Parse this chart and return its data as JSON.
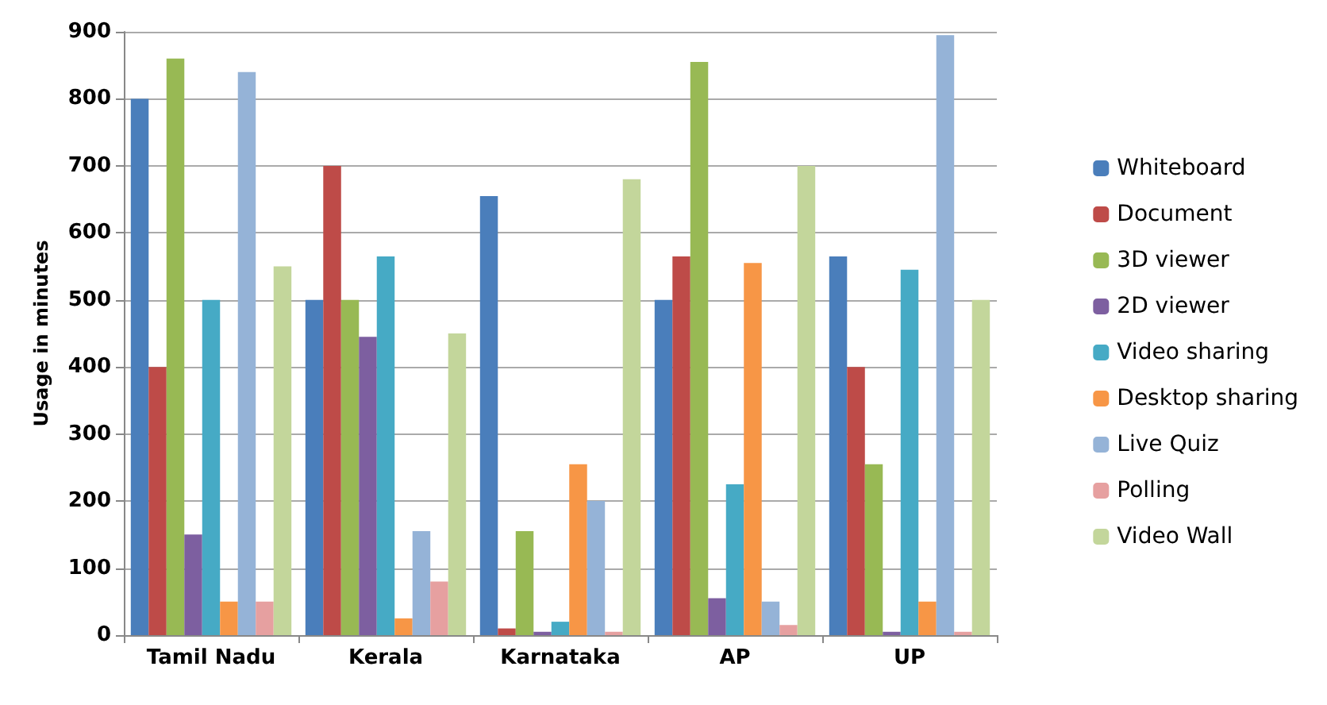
{
  "chart_data": {
    "type": "bar",
    "ylabel": "Usage in minutes",
    "categories": [
      "Tamil Nadu",
      "Kerala",
      "Karnataka",
      "AP",
      "UP"
    ],
    "series": [
      {
        "name": "Whiteboard",
        "color": "#4a7ebb",
        "values": [
          800,
          500,
          655,
          500,
          565
        ]
      },
      {
        "name": "Document",
        "color": "#be4b48",
        "values": [
          400,
          700,
          10,
          565,
          400
        ]
      },
      {
        "name": "3D viewer",
        "color": "#98b954",
        "values": [
          860,
          500,
          155,
          855,
          255
        ]
      },
      {
        "name": "2D viewer",
        "color": "#7d5fa0",
        "values": [
          150,
          445,
          5,
          55,
          5
        ]
      },
      {
        "name": "Video sharing",
        "color": "#46aac5",
        "values": [
          500,
          565,
          20,
          225,
          545
        ]
      },
      {
        "name": "Desktop sharing",
        "color": "#f79646",
        "values": [
          50,
          25,
          255,
          555,
          50
        ]
      },
      {
        "name": "Live Quiz",
        "color": "#95b3d7",
        "values": [
          840,
          155,
          200,
          50,
          895
        ]
      },
      {
        "name": "Polling",
        "color": "#e6a0a0",
        "values": [
          50,
          80,
          5,
          15,
          5
        ]
      },
      {
        "name": "Video Wall",
        "color": "#c3d69b",
        "values": [
          550,
          450,
          680,
          700,
          500
        ]
      }
    ],
    "ylim": [
      0,
      900
    ],
    "yticks": [
      0,
      100,
      200,
      300,
      400,
      500,
      600,
      700,
      800,
      900
    ],
    "grid": "y",
    "legend": "right"
  }
}
